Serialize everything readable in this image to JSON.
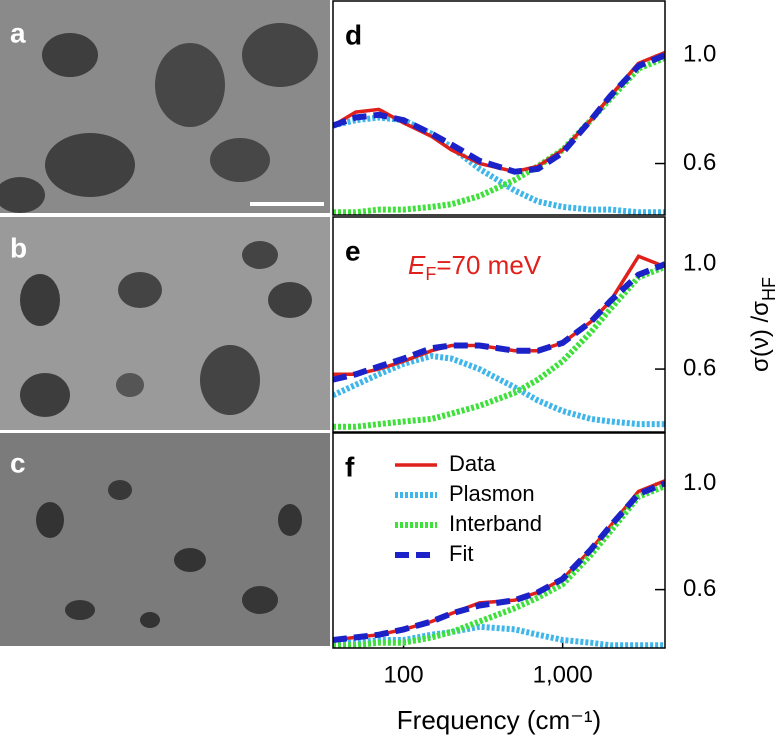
{
  "images": [
    {
      "label": "a"
    },
    {
      "label": "b"
    },
    {
      "label": "c"
    }
  ],
  "chart_data": [
    {
      "type": "line",
      "panel": "d",
      "log_x": true,
      "xlim": [
        36,
        4400
      ],
      "ylim": [
        0.41,
        1.2
      ],
      "yticks": [
        0.6,
        {
          "value": 1,
          "label": "1.0"
        }
      ],
      "x": [
        36,
        50,
        70,
        100,
        150,
        200,
        300,
        500,
        700,
        1000,
        1500,
        2000,
        3000,
        4400
      ],
      "series": [
        {
          "color": "#3fb6ea",
          "style": "dotted",
          "values": [
            0.74,
            0.76,
            0.77,
            0.76,
            0.71,
            0.66,
            0.58,
            0.5,
            0.46,
            0.44,
            0.43,
            0.43,
            0.42,
            0.42
          ]
        },
        {
          "color": "#3ee03a",
          "style": "dotted",
          "values": [
            0.42,
            0.42,
            0.43,
            0.43,
            0.44,
            0.45,
            0.48,
            0.54,
            0.59,
            0.65,
            0.76,
            0.84,
            0.95,
            0.99
          ]
        },
        {
          "color": "#e0201b",
          "style": "solid",
          "values": [
            0.74,
            0.79,
            0.8,
            0.75,
            0.7,
            0.65,
            0.6,
            0.57,
            0.59,
            0.65,
            0.76,
            0.85,
            0.97,
            1.01
          ]
        },
        {
          "color": "#1a22c8",
          "style": "dashed",
          "values": [
            0.74,
            0.77,
            0.78,
            0.76,
            0.71,
            0.67,
            0.61,
            0.57,
            0.58,
            0.64,
            0.76,
            0.85,
            0.96,
            1.0
          ]
        }
      ]
    },
    {
      "type": "line",
      "panel": "e",
      "log_x": true,
      "xlim": [
        36,
        4400
      ],
      "ylim": [
        0.36,
        1.18
      ],
      "yticks": [
        0.6,
        {
          "value": 1,
          "label": "1.0"
        }
      ],
      "annotation": [
        "E",
        "F",
        "=70 meV"
      ],
      "annotation_color": "#e0201b",
      "y_label": [
        "σ(ν) /σ",
        "HF"
      ],
      "x": [
        36,
        50,
        70,
        100,
        150,
        200,
        300,
        500,
        700,
        1000,
        1500,
        2000,
        3000,
        4400
      ],
      "series": [
        {
          "color": "#3fb6ea",
          "style": "dotted",
          "values": [
            0.5,
            0.54,
            0.58,
            0.62,
            0.65,
            0.64,
            0.6,
            0.53,
            0.48,
            0.44,
            0.41,
            0.4,
            0.39,
            0.39
          ]
        },
        {
          "color": "#3ee03a",
          "style": "dotted",
          "values": [
            0.38,
            0.38,
            0.39,
            0.4,
            0.41,
            0.43,
            0.46,
            0.51,
            0.56,
            0.63,
            0.74,
            0.83,
            0.95,
            0.99
          ]
        },
        {
          "color": "#e0201b",
          "style": "solid",
          "values": [
            0.58,
            0.58,
            0.6,
            0.63,
            0.67,
            0.69,
            0.69,
            0.67,
            0.67,
            0.7,
            0.78,
            0.86,
            1.03,
            0.99
          ]
        },
        {
          "color": "#1a22c8",
          "style": "dashed",
          "values": [
            0.56,
            0.58,
            0.61,
            0.64,
            0.68,
            0.69,
            0.69,
            0.67,
            0.67,
            0.7,
            0.78,
            0.86,
            0.96,
            1.0
          ]
        }
      ]
    },
    {
      "type": "line",
      "panel": "f",
      "log_x": true,
      "xlim": [
        36,
        4400
      ],
      "ylim": [
        0.38,
        1.19
      ],
      "yticks": [
        0.6,
        {
          "value": 1,
          "label": "1.0"
        }
      ],
      "xticks": [
        100,
        {
          "value": 1000,
          "label": "1,000"
        }
      ],
      "x_label": "Frequency (cm⁻¹)",
      "legend": "upper left",
      "x": [
        36,
        50,
        70,
        100,
        150,
        200,
        300,
        500,
        700,
        1000,
        1500,
        2000,
        3000,
        4400
      ],
      "series": [
        {
          "name": "Data",
          "color": "#e0201b",
          "style": "solid",
          "values": [
            0.41,
            0.42,
            0.43,
            0.45,
            0.48,
            0.51,
            0.55,
            0.56,
            0.59,
            0.64,
            0.75,
            0.84,
            0.97,
            1.01
          ]
        },
        {
          "name": "Plasmon",
          "color": "#3fb6ea",
          "style": "dotted",
          "values": [
            0.4,
            0.4,
            0.41,
            0.41,
            0.43,
            0.44,
            0.46,
            0.45,
            0.43,
            0.41,
            0.4,
            0.39,
            0.39,
            0.39
          ]
        },
        {
          "name": "Interband",
          "color": "#3ee03a",
          "style": "dotted",
          "values": [
            0.39,
            0.39,
            0.4,
            0.4,
            0.42,
            0.44,
            0.48,
            0.53,
            0.57,
            0.62,
            0.73,
            0.82,
            0.95,
            0.99
          ]
        },
        {
          "name": "Fit",
          "color": "#1a22c8",
          "style": "dashed",
          "values": [
            0.41,
            0.42,
            0.43,
            0.45,
            0.48,
            0.51,
            0.54,
            0.56,
            0.59,
            0.64,
            0.75,
            0.84,
            0.96,
            1.0
          ]
        }
      ]
    }
  ]
}
